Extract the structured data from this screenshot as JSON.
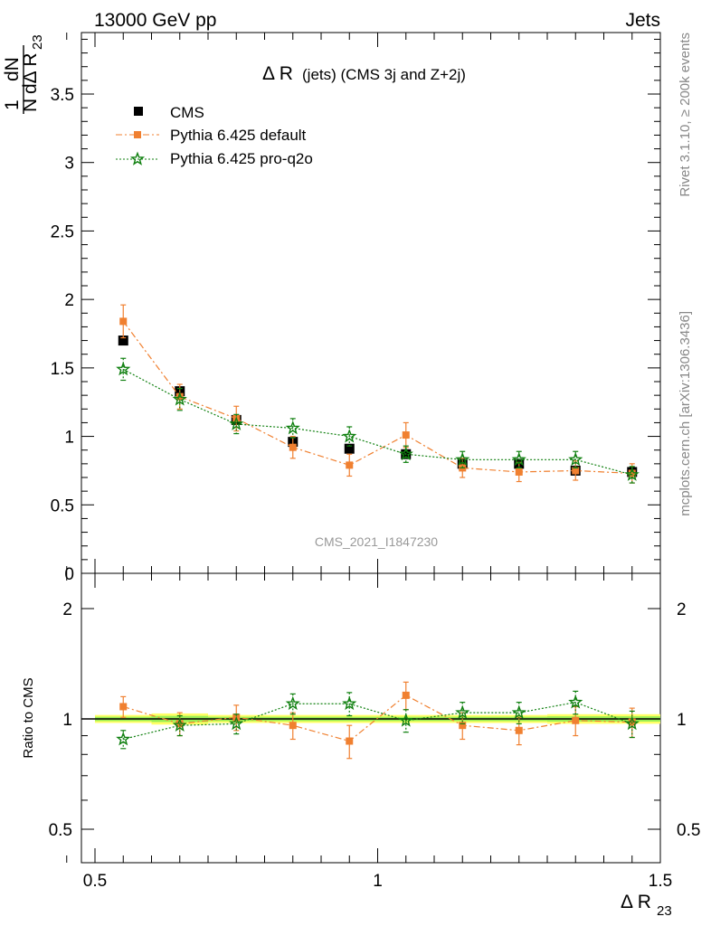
{
  "header": {
    "left_label": "13000 GeV pp",
    "right_label": "Jets"
  },
  "side_labels": {
    "rivet": "Rivet 3.1.10, ≥ 200k events",
    "mcplots": "mcplots.cern.ch [arXiv:1306.3436]"
  },
  "watermark": "CMS_2021_I1847230",
  "colors": {
    "cms": "#000000",
    "default": "#f08030",
    "proq2o": "#108010",
    "band_yellow": "#ffff66",
    "band_green": "#99ee55"
  },
  "chart_data": [
    {
      "type": "scatter",
      "title": "Δ R (jets) (CMS 3j and Z+2j)",
      "title_main": "Δ R",
      "title_sub": "(jets) (CMS 3j and Z+2j)",
      "ylabel": "1/N dN/dΔ R23",
      "ylabel_parts": {
        "num_top": "1",
        "num_bottom": "N",
        "frac_top": "dN",
        "frac_bottom": "dΔ R",
        "sub": "23"
      },
      "xlim": [
        0.5,
        1.5
      ],
      "ylim": [
        0,
        3.95
      ],
      "y_ticks": [
        "0",
        "0.5",
        "1",
        "1.5",
        "2",
        "2.5",
        "3",
        "3.5"
      ],
      "y_tick_values": [
        0,
        0.5,
        1,
        1.5,
        2,
        2.5,
        3,
        3.5
      ],
      "legend_position": "top-left",
      "x": [
        0.55,
        0.65,
        0.75,
        0.85,
        0.95,
        1.05,
        1.15,
        1.25,
        1.35,
        1.45
      ],
      "series": [
        {
          "name": "CMS",
          "marker": "square",
          "values": [
            1.7,
            1.33,
            1.12,
            0.96,
            0.91,
            0.87,
            0.8,
            0.8,
            0.75,
            0.74
          ],
          "errors": [
            0.0,
            0.0,
            0.0,
            0.0,
            0.0,
            0.0,
            0.0,
            0.0,
            0.0,
            0.0
          ]
        },
        {
          "name": "Pythia 6.425 default",
          "marker": "filled-square-dashdot",
          "values": [
            1.84,
            1.29,
            1.13,
            0.92,
            0.79,
            1.01,
            0.77,
            0.74,
            0.75,
            0.73
          ],
          "errors": [
            0.12,
            0.09,
            0.09,
            0.08,
            0.08,
            0.09,
            0.07,
            0.07,
            0.07,
            0.07
          ]
        },
        {
          "name": "Pythia 6.425 pro-q2o",
          "marker": "open-star-dotted",
          "values": [
            1.49,
            1.27,
            1.09,
            1.06,
            1.0,
            0.87,
            0.83,
            0.83,
            0.83,
            0.72
          ],
          "errors": [
            0.08,
            0.08,
            0.07,
            0.07,
            0.07,
            0.06,
            0.06,
            0.06,
            0.06,
            0.06
          ]
        }
      ]
    },
    {
      "type": "scatter",
      "title": "",
      "ylabel": "Ratio to CMS",
      "xlabel": "Δ R23",
      "xlabel_parts": {
        "main": "Δ R",
        "sub": "23"
      },
      "xlim": [
        0.5,
        1.5
      ],
      "ylim": [
        0.4,
        2.3
      ],
      "y_scale": "log",
      "y_ticks_left": [
        "0.5",
        "1",
        "2"
      ],
      "y_ticks_right": [
        "0.5",
        "1",
        "2"
      ],
      "y_tick_values": [
        0.5,
        1,
        2
      ],
      "x_ticks": [
        "0.5",
        "1",
        "1.5"
      ],
      "x_tick_values": [
        0.5,
        1,
        1.5
      ],
      "x": [
        0.55,
        0.65,
        0.75,
        0.85,
        0.95,
        1.05,
        1.15,
        1.25,
        1.35,
        1.45
      ],
      "reference_line": 1,
      "series": [
        {
          "name": "Pythia 6.425 default",
          "values": [
            1.08,
            0.97,
            1.01,
            0.96,
            0.87,
            1.16,
            0.96,
            0.93,
            0.99,
            0.98
          ],
          "errors": [
            0.07,
            0.07,
            0.08,
            0.08,
            0.09,
            0.1,
            0.08,
            0.08,
            0.09,
            0.09
          ]
        },
        {
          "name": "Pythia 6.425 pro-q2o",
          "values": [
            0.88,
            0.96,
            0.97,
            1.1,
            1.1,
            0.99,
            1.04,
            1.04,
            1.11,
            0.97
          ],
          "errors": [
            0.05,
            0.06,
            0.06,
            0.07,
            0.08,
            0.07,
            0.07,
            0.07,
            0.08,
            0.08
          ]
        }
      ],
      "band": [
        {
          "x0": 0.5,
          "x1": 0.6,
          "lo": 0.975,
          "hi": 1.025
        },
        {
          "x0": 0.6,
          "x1": 0.7,
          "lo": 0.965,
          "hi": 1.035
        },
        {
          "x0": 0.7,
          "x1": 0.8,
          "lo": 0.975,
          "hi": 1.025
        },
        {
          "x0": 0.8,
          "x1": 0.9,
          "lo": 0.975,
          "hi": 1.025
        },
        {
          "x0": 0.9,
          "x1": 1.0,
          "lo": 0.975,
          "hi": 1.025
        },
        {
          "x0": 1.0,
          "x1": 1.1,
          "lo": 0.975,
          "hi": 1.025
        },
        {
          "x0": 1.1,
          "x1": 1.2,
          "lo": 0.975,
          "hi": 1.025
        },
        {
          "x0": 1.2,
          "x1": 1.3,
          "lo": 0.975,
          "hi": 1.025
        },
        {
          "x0": 1.3,
          "x1": 1.4,
          "lo": 0.97,
          "hi": 1.03
        },
        {
          "x0": 1.4,
          "x1": 1.5,
          "lo": 0.97,
          "hi": 1.03
        }
      ]
    }
  ]
}
